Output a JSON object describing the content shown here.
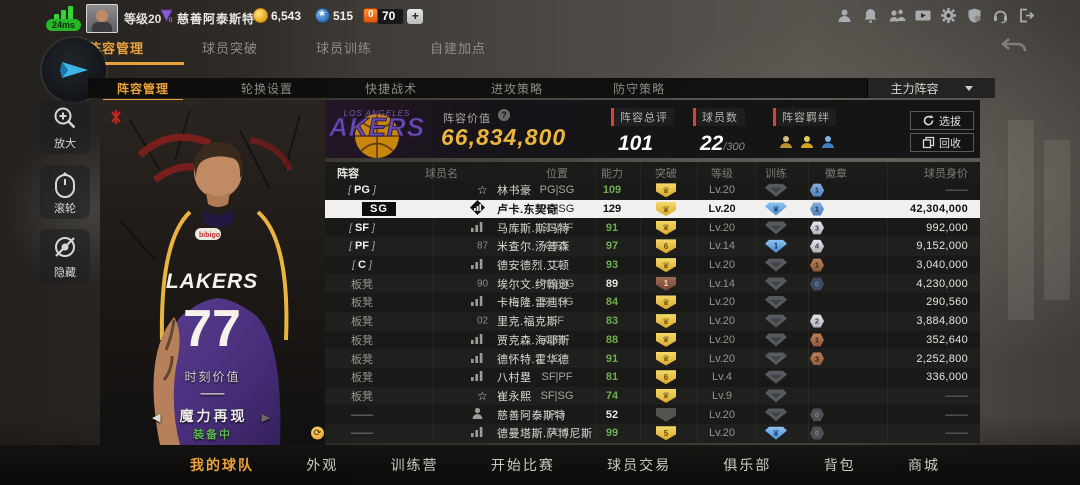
{
  "status_bar": {
    "ping": "24ms",
    "level": "等级20",
    "username": "慈善阿泰斯特",
    "coins": "6,543",
    "stars": "515",
    "diamonds": "70",
    "add_label": "+"
  },
  "top_icons": [
    "profile-icon",
    "bell-icon",
    "friends-icon",
    "video-icon",
    "gear-icon",
    "shield-icon",
    "headset-icon",
    "logout-icon"
  ],
  "main_tabs": [
    {
      "label": "阵容管理",
      "active": true
    },
    {
      "label": "球员突破",
      "active": false
    },
    {
      "label": "球员训练",
      "active": false
    },
    {
      "label": "自建加点",
      "active": false
    }
  ],
  "sub_tabs": [
    {
      "label": "阵容管理",
      "active": true
    },
    {
      "label": "轮换设置",
      "active": false
    },
    {
      "label": "快捷战术",
      "active": false
    },
    {
      "label": "进攻策略",
      "active": false
    },
    {
      "label": "防守策略",
      "active": false
    }
  ],
  "lineup_select": {
    "value": "主力阵容"
  },
  "side_buttons": [
    {
      "label": "放大"
    },
    {
      "label": "滚轮"
    },
    {
      "label": "隐藏"
    }
  ],
  "player_card": {
    "team": "LAKERS",
    "number": "77",
    "moment_label": "时刻价值",
    "moment_value": "——",
    "skin_name": "魔力再现",
    "equipped": "装备中",
    "arrow_left": "◀",
    "arrow_right": "▶"
  },
  "stats": {
    "value_label": "阵容价值",
    "value": "66,834,800",
    "rating_label": "阵容总评",
    "rating": "101",
    "players_label": "球员数",
    "players": "22",
    "players_max": "/300",
    "bonds_label": "阵容羁绊"
  },
  "actions": {
    "select": "选拔",
    "recycle": "回收"
  },
  "table": {
    "headers": [
      "阵容",
      "球员名",
      "位置",
      "能力",
      "突破",
      "等级",
      "训练",
      "徽章",
      "球员身价"
    ],
    "rows": [
      {
        "slot": "PG",
        "slot_type": "starter",
        "icon": "star",
        "name": "林书豪",
        "pos": "PG|SG",
        "ability": "109",
        "ability_color": "green",
        "break": {
          "type": "crown",
          "color": "gold"
        },
        "level": "Lv.20",
        "train": "gray",
        "badges": [
          {
            "c": "bz",
            "v": "11"
          },
          {
            "c": "sv",
            "v": "19"
          },
          {
            "c": "gd",
            "v": "1"
          },
          {
            "c": "bl",
            "v": "1"
          }
        ],
        "price": "——"
      },
      {
        "slot": "SG",
        "slot_type": "selected",
        "selected": true,
        "icon": "dark",
        "name": "卢卡.东契奇",
        "pos": "PG|SG",
        "ability": "129",
        "ability_color": "white",
        "break": {
          "type": "crown",
          "color": "gold"
        },
        "level": "Lv.20",
        "train": "blue-crown",
        "badges": [
          {
            "c": "bz",
            "v": "1"
          },
          {
            "c": "sv",
            "v": "32"
          },
          {
            "c": "gd",
            "v": "2"
          },
          {
            "c": "bl",
            "v": "1"
          }
        ],
        "price": "42,304,000"
      },
      {
        "slot": "SF",
        "slot_type": "starter",
        "icon": "bars",
        "name": "马库斯.斯玛特",
        "pos": "SG|SF",
        "ability": "91",
        "ability_color": "green",
        "break": {
          "type": "crown",
          "color": "gold"
        },
        "level": "Lv.20",
        "train": "gray",
        "badges": [
          {
            "c": "bz",
            "v": "4"
          },
          {
            "c": "sv",
            "v": "3"
          }
        ],
        "price": "992,000"
      },
      {
        "slot": "PF",
        "slot_type": "starter",
        "icon": "num",
        "icon_num": "87",
        "name": "米查尔.汤普森",
        "pos": "C|PF",
        "ability": "97",
        "ability_color": "green",
        "break": {
          "type": "num",
          "value": "6",
          "color": "gold"
        },
        "level": "Lv.14",
        "train": "blue-num",
        "train_value": "1",
        "badges": [
          {
            "c": "bz",
            "v": "8"
          },
          {
            "c": "sv",
            "v": "4"
          }
        ],
        "price": "9,152,000"
      },
      {
        "slot": "C",
        "slot_type": "starter",
        "icon": "bars",
        "name": "德安德烈.艾顿",
        "pos": "C",
        "ability": "93",
        "ability_color": "green",
        "break": {
          "type": "crown",
          "color": "gold"
        },
        "level": "Lv.20",
        "train": "gray",
        "badges": [
          {
            "c": "bz",
            "v": "1"
          }
        ],
        "price": "3,040,000"
      },
      {
        "slot": "板凳",
        "slot_type": "bench",
        "icon": "num",
        "icon_num": "90",
        "name": "埃尔文.约翰逊",
        "pos": "PG|SG",
        "ability": "89",
        "ability_color": "white",
        "break": {
          "type": "num",
          "value": "1",
          "color": "bronze"
        },
        "level": "Lv.14",
        "train": "gray",
        "badges": [
          {
            "c": "bzd",
            "v": "8"
          },
          {
            "c": "svd",
            "v": "0"
          },
          {
            "c": "gdd",
            "v": "0"
          },
          {
            "c": "bld",
            "v": "0"
          }
        ],
        "price": "4,230,000"
      },
      {
        "slot": "板凳",
        "slot_type": "bench",
        "icon": "bars",
        "name": "卡梅隆.雷迪什",
        "pos": "SF|SG",
        "ability": "84",
        "ability_color": "green",
        "break": {
          "type": "crown",
          "color": "gold"
        },
        "level": "Lv.20",
        "train": "gray",
        "badges": [],
        "price": "290,560"
      },
      {
        "slot": "板凳",
        "slot_type": "bench",
        "icon": "num",
        "icon_num": "02",
        "name": "里克.福克斯",
        "pos": "SF",
        "ability": "83",
        "ability_color": "green",
        "break": {
          "type": "crown",
          "color": "gold"
        },
        "level": "Lv.20",
        "train": "gray",
        "badges": [
          {
            "c": "bz",
            "v": "1"
          },
          {
            "c": "sv",
            "v": "2"
          }
        ],
        "price": "3,884,800"
      },
      {
        "slot": "板凳",
        "slot_type": "bench",
        "icon": "bars",
        "name": "贾克森.海耶斯",
        "pos": "C|PF",
        "ability": "88",
        "ability_color": "green",
        "break": {
          "type": "crown",
          "color": "gold"
        },
        "level": "Lv.20",
        "train": "gray",
        "badges": [
          {
            "c": "bz",
            "v": "1"
          }
        ],
        "price": "352,640"
      },
      {
        "slot": "板凳",
        "slot_type": "bench",
        "icon": "bars",
        "name": "德怀特.霍华德",
        "pos": "C",
        "ability": "91",
        "ability_color": "green",
        "break": {
          "type": "crown",
          "color": "gold"
        },
        "level": "Lv.20",
        "train": "gray",
        "badges": [
          {
            "c": "bz",
            "v": "3"
          }
        ],
        "price": "2,252,800"
      },
      {
        "slot": "板凳",
        "slot_type": "bench",
        "icon": "bars",
        "name": "八村塁",
        "pos": "SF|PF",
        "ability": "81",
        "ability_color": "green",
        "break": {
          "type": "num",
          "value": "6",
          "color": "gold"
        },
        "level": "Lv.4",
        "train": "gray",
        "badges": [],
        "price": "336,000"
      },
      {
        "slot": "板凳",
        "slot_type": "bench",
        "icon": "star",
        "name": "崔永熙",
        "pos": "SF|SG",
        "ability": "74",
        "ability_color": "green",
        "break": {
          "type": "crown",
          "color": "gold"
        },
        "level": "Lv.9",
        "train": "gray",
        "badges": [],
        "price": "——"
      },
      {
        "slot": "——",
        "slot_type": "none",
        "icon": "person",
        "name": "慈善阿泰斯特",
        "pos": "PG",
        "ability": "52",
        "ability_color": "white",
        "break": {
          "type": "empty",
          "color": "gray"
        },
        "level": "Lv.20",
        "train": "gray",
        "badges": [
          {
            "c": "bzd",
            "v": "0"
          },
          {
            "c": "svd",
            "v": "0"
          }
        ],
        "price": "——"
      },
      {
        "slot": "——",
        "slot_type": "none",
        "loan": true,
        "icon": "bars",
        "name": "德曼塔斯.萨博尼斯",
        "pos": "C",
        "ability": "99",
        "ability_color": "green",
        "break": {
          "type": "num",
          "value": "5",
          "color": "gold"
        },
        "level": "Lv.20",
        "train": "blue-crown",
        "badges": [
          {
            "c": "bz",
            "v": "8"
          },
          {
            "c": "svd",
            "v": "0"
          }
        ],
        "price": "——"
      }
    ]
  },
  "bottom_nav": [
    {
      "label": "我的球队",
      "active": true
    },
    {
      "label": "外观",
      "active": false
    },
    {
      "label": "训练营",
      "active": false
    },
    {
      "label": "开始比赛",
      "active": false
    },
    {
      "label": "球员交易",
      "active": false
    },
    {
      "label": "俱乐部",
      "active": false
    },
    {
      "label": "背包",
      "active": false
    },
    {
      "label": "商城",
      "active": false
    }
  ]
}
